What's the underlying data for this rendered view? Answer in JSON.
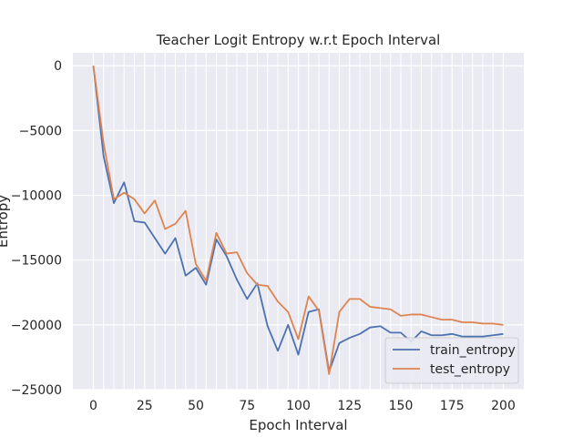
{
  "chart_data": {
    "type": "line",
    "title": "Teacher Logit Entropy w.r.t Epoch Interval",
    "xlabel": "Epoch Interval",
    "ylabel": "Entropy",
    "xlim": [
      -10,
      210
    ],
    "ylim": [
      -25000,
      1000
    ],
    "xticks": [
      0,
      25,
      50,
      75,
      100,
      125,
      150,
      175,
      200
    ],
    "yticks": [
      0,
      -5000,
      -10000,
      -15000,
      -20000,
      -25000
    ],
    "ytick_labels": [
      "0",
      "−5000",
      "−10000",
      "−15000",
      "−20000",
      "−25000"
    ],
    "x": [
      0,
      5,
      10,
      15,
      20,
      25,
      30,
      35,
      40,
      45,
      50,
      55,
      60,
      65,
      70,
      75,
      80,
      85,
      90,
      95,
      100,
      105,
      110,
      115,
      120,
      125,
      130,
      135,
      140,
      145,
      150,
      155,
      160,
      165,
      170,
      175,
      180,
      185,
      190,
      195,
      200
    ],
    "series": [
      {
        "name": "train_entropy",
        "color": "#4c72b0",
        "values": [
          0,
          -7000,
          -10600,
          -9000,
          -12000,
          -12100,
          -13300,
          -14500,
          -13300,
          -16200,
          -15600,
          -16900,
          -13400,
          -14700,
          -16500,
          -18000,
          -16800,
          -20100,
          -22000,
          -20000,
          -22300,
          -19000,
          -18800,
          -23600,
          -21400,
          -21000,
          -20700,
          -20200,
          -20100,
          -20600,
          -20600,
          -21300,
          -20500,
          -20800,
          -20800,
          -20700,
          -20900,
          -20900,
          -20900,
          -20800,
          -20700
        ]
      },
      {
        "name": "test_entropy",
        "color": "#dd8452",
        "values": [
          0,
          -6000,
          -10300,
          -9800,
          -10300,
          -11400,
          -10400,
          -12600,
          -12200,
          -11200,
          -15300,
          -16600,
          -12900,
          -14500,
          -14400,
          -16000,
          -16900,
          -17000,
          -18200,
          -19000,
          -21100,
          -17800,
          -18900,
          -23800,
          -19000,
          -18000,
          -18000,
          -18600,
          -18700,
          -18800,
          -19300,
          -19200,
          -19200,
          -19400,
          -19600,
          -19600,
          -19800,
          -19800,
          -19900,
          -19900,
          -20000
        ]
      }
    ],
    "grid": true,
    "background": "#eaeaf2",
    "legend_position": "lower-right"
  }
}
